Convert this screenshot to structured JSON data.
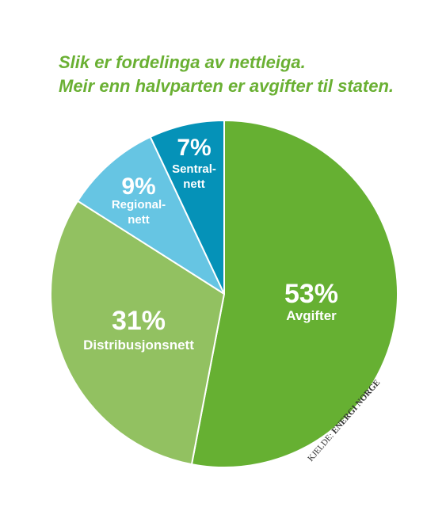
{
  "chart_data": {
    "type": "pie",
    "title_lines": [
      "Slik er fordelinga av nettleiga.",
      "Meir enn halvparten er avgifter til staten."
    ],
    "slices": [
      {
        "value": 53,
        "percent_label": "53%",
        "label_lines": [
          "Avgifter"
        ],
        "color": "#66b032"
      },
      {
        "value": 31,
        "percent_label": "31%",
        "label_lines": [
          "Distribusjonsnett"
        ],
        "color": "#92c161"
      },
      {
        "value": 9,
        "percent_label": "9%",
        "label_lines": [
          "Regional-",
          "nett"
        ],
        "color": "#66c5e3"
      },
      {
        "value": 7,
        "percent_label": "7%",
        "label_lines": [
          "Sentral-",
          "nett"
        ],
        "color": "#0592b8"
      }
    ],
    "source": {
      "prefix": "KJELDE:",
      "name": "ENERGI NORGE"
    }
  },
  "colors": {
    "title": "#6ab033",
    "slice_border": "#ffffff"
  }
}
